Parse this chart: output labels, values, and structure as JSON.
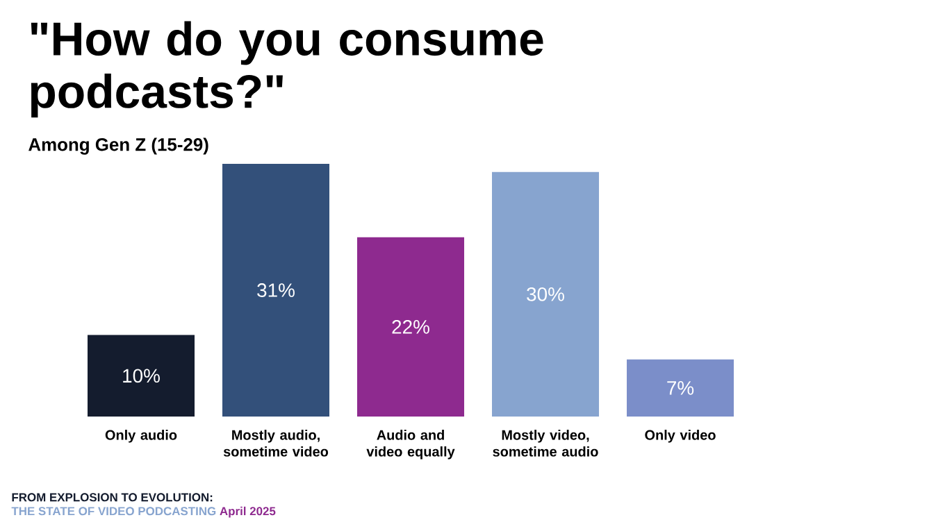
{
  "chart_data": {
    "type": "bar",
    "title": "\"How do you consume podcasts?\"",
    "subtitle": "Among Gen Z (15-29)",
    "categories": [
      "Only audio",
      "Mostly audio, sometime video",
      "Audio and video equally",
      "Mostly video, sometime audio",
      "Only video"
    ],
    "values": [
      10,
      31,
      22,
      30,
      7
    ],
    "value_labels": [
      "10%",
      "31%",
      "22%",
      "30%",
      "7%"
    ],
    "colors": [
      "#141c2e",
      "#33507a",
      "#8e2a8f",
      "#87a4cf",
      "#7b8ec9"
    ],
    "annotations": [
      "FROM EXPLOSION TO EVOLUTION:",
      "THE STATE OF VIDEO PODCASTING",
      "April 2025"
    ]
  }
}
